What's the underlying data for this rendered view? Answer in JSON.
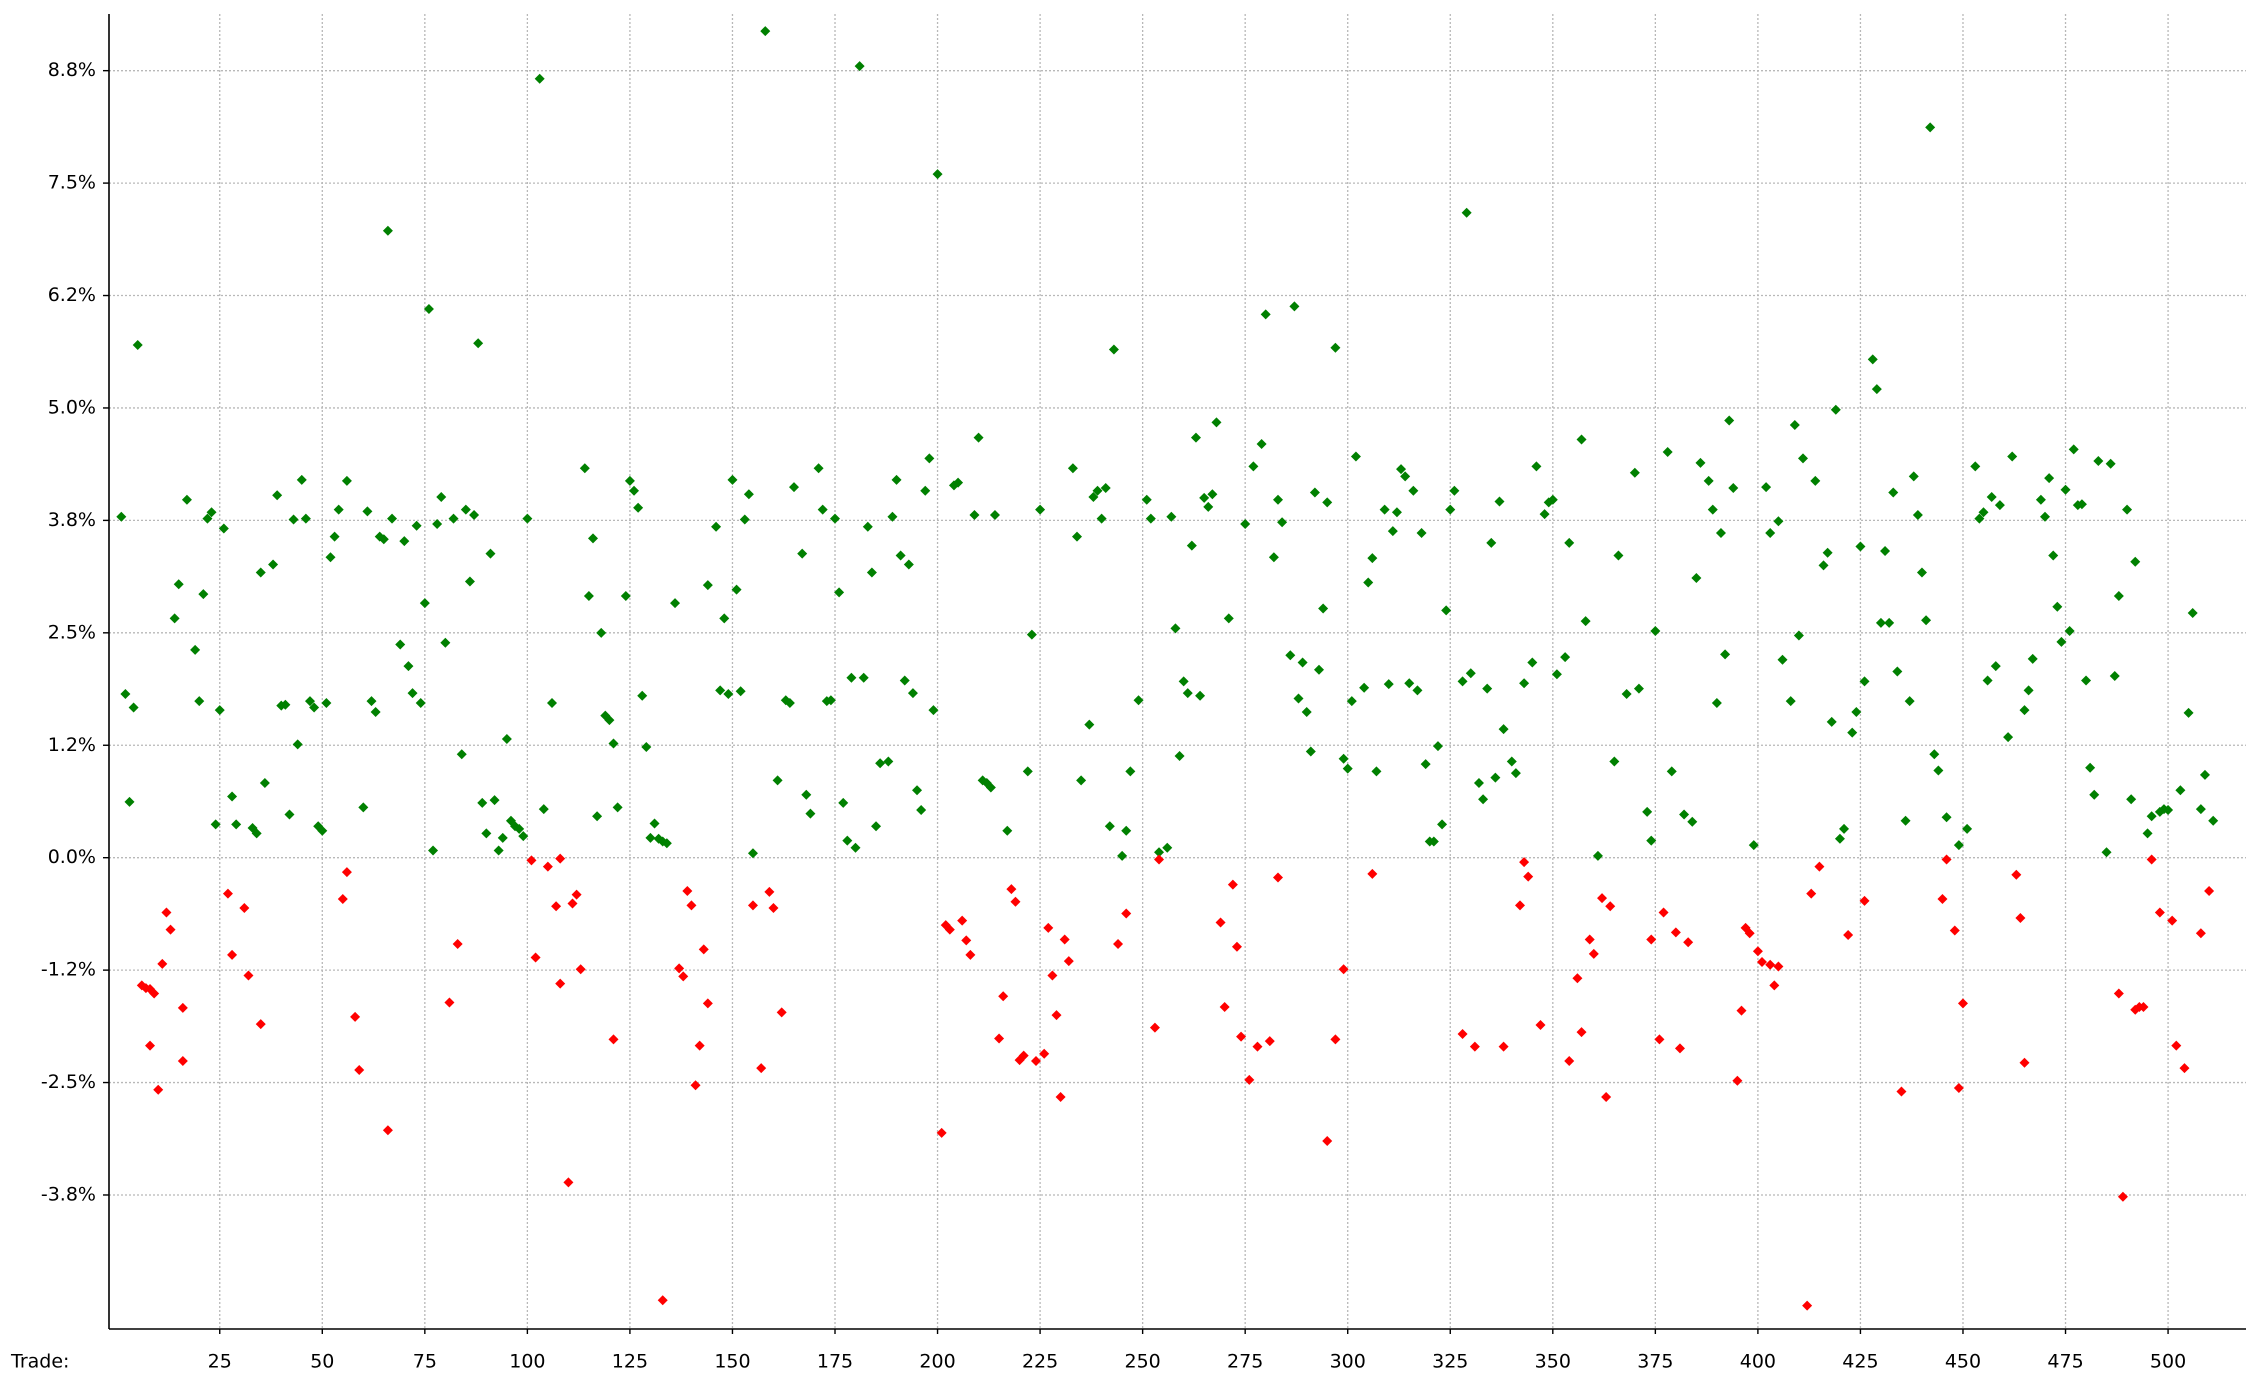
{
  "chart_data": {
    "type": "scatter",
    "x_label": "Trade:",
    "x_label_color": "#0000ff",
    "xlim": [
      -2,
      519
    ],
    "ylim": [
      -5.24,
      9.38
    ],
    "grid": true,
    "xticks": [
      25,
      50,
      75,
      100,
      125,
      150,
      175,
      200,
      225,
      250,
      275,
      300,
      325,
      350,
      375,
      400,
      425,
      450,
      475,
      500
    ],
    "yticks": [
      {
        "value": -3.75,
        "label": "-3.8%"
      },
      {
        "value": -2.5,
        "label": "-2.5%"
      },
      {
        "value": -1.25,
        "label": "-1.2%"
      },
      {
        "value": 0,
        "label": "0.0%"
      },
      {
        "value": 1.25,
        "label": "1.2%"
      },
      {
        "value": 2.5,
        "label": "2.5%"
      },
      {
        "value": 3.75,
        "label": "3.8%"
      },
      {
        "value": 5,
        "label": "5.0%"
      },
      {
        "value": 6.25,
        "label": "6.2%"
      },
      {
        "value": 7.5,
        "label": "7.5%"
      },
      {
        "value": 8.75,
        "label": "8.8%"
      }
    ],
    "series": [
      {
        "color": "#008000",
        "x": [
          1,
          2,
          3,
          4,
          5,
          14,
          15,
          17,
          19,
          20,
          21,
          22,
          23,
          24,
          25,
          26,
          28,
          29,
          33,
          34,
          35,
          36,
          38,
          39,
          40,
          41,
          42,
          43,
          44,
          45,
          46,
          47,
          48,
          49,
          50,
          51,
          52,
          53,
          54,
          56,
          60,
          61,
          62,
          63,
          64,
          65,
          66,
          67,
          69,
          70,
          71,
          72,
          73,
          74,
          75,
          76,
          77,
          78,
          79,
          80,
          82,
          84,
          85,
          86,
          87,
          88,
          89,
          90,
          91,
          92,
          93,
          94,
          95,
          96,
          97,
          98,
          99,
          100,
          103,
          104,
          106,
          114,
          115,
          116,
          117,
          118,
          119,
          120,
          121,
          122,
          124,
          125,
          126,
          127,
          128,
          129,
          130,
          131,
          132,
          133,
          134,
          136,
          144,
          146,
          147,
          148,
          149,
          150,
          151,
          152,
          153,
          154,
          155,
          158,
          161,
          163,
          164,
          165,
          167,
          168,
          169,
          171,
          172,
          173,
          174,
          175,
          176,
          177,
          178,
          179,
          180,
          181,
          182,
          183,
          184,
          185,
          186,
          188,
          189,
          190,
          191,
          192,
          193,
          194,
          195,
          196,
          197,
          198,
          199,
          200,
          204,
          205,
          209,
          210,
          211,
          212,
          213,
          214,
          217,
          222,
          223,
          225,
          233,
          234,
          235,
          237,
          238,
          239,
          240,
          241,
          242,
          243,
          245,
          246,
          247,
          249,
          251,
          252,
          254,
          256,
          257,
          258,
          259,
          260,
          261,
          262,
          263,
          264,
          265,
          266,
          267,
          268,
          271,
          275,
          277,
          279,
          280,
          282,
          283,
          284,
          286,
          287,
          288,
          289,
          290,
          291,
          292,
          293,
          294,
          295,
          297,
          299,
          300,
          301,
          302,
          304,
          305,
          306,
          307,
          309,
          310,
          311,
          312,
          313,
          314,
          315,
          316,
          317,
          318,
          319,
          320,
          321,
          322,
          323,
          324,
          325,
          326,
          328,
          329,
          330,
          332,
          333,
          334,
          335,
          336,
          337,
          338,
          340,
          341,
          343,
          345,
          346,
          348,
          349,
          350,
          351,
          353,
          354,
          357,
          358,
          361,
          365,
          366,
          368,
          370,
          371,
          373,
          374,
          375,
          378,
          379,
          382,
          384,
          385,
          386,
          388,
          389,
          390,
          391,
          392,
          393,
          394,
          399,
          402,
          403,
          405,
          406,
          408,
          409,
          410,
          411,
          414,
          416,
          417,
          418,
          419,
          420,
          421,
          423,
          424,
          425,
          426,
          428,
          429,
          430,
          431,
          432,
          433,
          434,
          436,
          437,
          438,
          439,
          440,
          441,
          442,
          443,
          444,
          446,
          449,
          451,
          453,
          454,
          455,
          456,
          457,
          458,
          459,
          461,
          462,
          465,
          466,
          467,
          469,
          470,
          471,
          472,
          473,
          474,
          475,
          476,
          477,
          478,
          479,
          480,
          481,
          482,
          483,
          485,
          486,
          487,
          488,
          490,
          491,
          492,
          495,
          496,
          498,
          499,
          500,
          503,
          505,
          506,
          508,
          509,
          511
        ],
        "values": [
          3.79,
          1.82,
          0.62,
          1.67,
          5.7,
          2.66,
          3.04,
          3.98,
          2.31,
          1.74,
          2.93,
          3.77,
          3.84,
          0.37,
          1.64,
          3.66,
          0.68,
          0.37,
          0.33,
          0.27,
          3.17,
          0.83,
          3.26,
          4.03,
          1.69,
          1.7,
          0.48,
          3.76,
          1.26,
          4.2,
          3.77,
          1.74,
          1.67,
          0.35,
          0.3,
          1.72,
          3.34,
          3.57,
          3.87,
          4.19,
          0.56,
          3.85,
          1.74,
          1.62,
          3.57,
          3.54,
          6.97,
          3.77,
          2.37,
          3.52,
          2.13,
          1.83,
          3.69,
          1.72,
          2.83,
          6.1,
          0.08,
          3.71,
          4.01,
          2.39,
          3.77,
          1.15,
          3.87,
          3.07,
          3.81,
          5.72,
          0.61,
          0.27,
          3.38,
          0.64,
          0.08,
          0.22,
          1.32,
          0.41,
          0.35,
          0.32,
          0.24,
          3.77,
          8.66,
          0.54,
          1.72,
          4.33,
          2.91,
          3.55,
          0.46,
          2.5,
          1.58,
          1.53,
          1.27,
          0.56,
          2.91,
          4.19,
          4.08,
          3.89,
          1.8,
          1.23,
          0.22,
          0.38,
          0.21,
          0.18,
          0.16,
          2.83,
          3.03,
          3.68,
          1.86,
          2.66,
          1.82,
          4.2,
          2.98,
          1.85,
          3.76,
          4.04,
          0.05,
          9.19,
          0.86,
          1.75,
          1.72,
          4.12,
          3.38,
          0.7,
          0.49,
          4.33,
          3.87,
          1.74,
          1.75,
          3.77,
          2.95,
          0.61,
          0.19,
          2.0,
          0.11,
          8.8,
          2.0,
          3.68,
          3.17,
          0.35,
          1.05,
          1.07,
          3.79,
          4.2,
          3.36,
          1.97,
          3.26,
          1.83,
          0.75,
          0.53,
          4.08,
          4.44,
          1.64,
          7.6,
          4.14,
          4.17,
          3.81,
          4.67,
          0.86,
          0.83,
          0.78,
          3.81,
          0.3,
          0.96,
          2.48,
          3.87,
          4.33,
          3.57,
          0.86,
          1.48,
          4.01,
          4.08,
          3.77,
          4.11,
          0.35,
          5.65,
          0.02,
          0.3,
          0.96,
          1.75,
          3.98,
          3.77,
          0.06,
          0.11,
          3.79,
          2.55,
          1.13,
          1.96,
          1.83,
          3.47,
          4.67,
          1.8,
          4.0,
          3.9,
          4.04,
          4.84,
          2.66,
          3.71,
          4.35,
          4.6,
          6.04,
          3.34,
          3.98,
          3.73,
          2.25,
          6.13,
          1.77,
          2.17,
          1.62,
          1.18,
          4.06,
          2.09,
          2.77,
          3.95,
          5.67,
          1.1,
          0.99,
          1.74,
          4.46,
          1.89,
          3.06,
          3.33,
          0.96,
          3.87,
          1.93,
          3.63,
          3.84,
          4.32,
          4.24,
          1.94,
          4.08,
          1.86,
          3.61,
          1.04,
          0.18,
          0.18,
          1.24,
          0.37,
          2.75,
          3.87,
          4.08,
          1.96,
          7.17,
          2.05,
          0.83,
          0.65,
          1.88,
          3.5,
          0.89,
          3.96,
          1.43,
          1.07,
          0.94,
          1.94,
          2.17,
          4.35,
          3.82,
          3.95,
          3.98,
          2.04,
          2.23,
          3.5,
          4.65,
          2.63,
          0.02,
          1.07,
          3.36,
          1.82,
          4.28,
          1.88,
          0.51,
          0.19,
          2.52,
          4.51,
          0.96,
          0.48,
          0.4,
          3.11,
          4.39,
          4.19,
          3.87,
          1.72,
          3.61,
          2.26,
          4.86,
          4.11,
          0.14,
          4.12,
          3.61,
          3.74,
          2.2,
          1.74,
          4.81,
          2.47,
          4.44,
          4.19,
          3.25,
          3.39,
          1.51,
          4.98,
          0.21,
          0.32,
          1.39,
          1.62,
          3.46,
          1.96,
          5.54,
          5.21,
          2.61,
          3.41,
          2.61,
          4.06,
          2.07,
          0.41,
          1.74,
          4.24,
          3.81,
          3.17,
          2.64,
          8.12,
          1.15,
          0.97,
          0.45,
          0.14,
          0.32,
          4.35,
          3.77,
          3.84,
          1.97,
          4.01,
          2.13,
          3.92,
          1.34,
          4.46,
          1.64,
          1.86,
          2.21,
          3.98,
          3.79,
          4.22,
          3.36,
          2.79,
          2.4,
          4.09,
          2.52,
          4.54,
          3.92,
          3.93,
          1.97,
          1.0,
          0.7,
          4.41,
          0.06,
          4.38,
          2.02,
          2.91,
          3.87,
          0.65,
          3.29,
          0.27,
          0.46,
          0.51,
          0.54,
          0.53,
          0.75,
          1.61,
          2.72,
          0.54,
          0.92,
          0.41
        ]
      },
      {
        "color": "#ff0000",
        "x": [
          6,
          7,
          8,
          8,
          9,
          10,
          11,
          12,
          13,
          16,
          16,
          27,
          28,
          31,
          32,
          35,
          55,
          56,
          58,
          59,
          66,
          81,
          83,
          101,
          102,
          105,
          107,
          108,
          108,
          110,
          111,
          112,
          113,
          121,
          133,
          137,
          138,
          139,
          140,
          141,
          142,
          143,
          144,
          155,
          157,
          159,
          160,
          162,
          201,
          202,
          203,
          206,
          207,
          208,
          215,
          216,
          218,
          219,
          220,
          221,
          224,
          226,
          227,
          228,
          229,
          230,
          231,
          232,
          244,
          246,
          253,
          254,
          269,
          270,
          272,
          273,
          274,
          276,
          278,
          281,
          283,
          295,
          297,
          299,
          306,
          328,
          331,
          338,
          342,
          343,
          344,
          347,
          354,
          356,
          357,
          359,
          360,
          362,
          363,
          364,
          374,
          376,
          377,
          380,
          381,
          383,
          395,
          396,
          397,
          398,
          400,
          401,
          403,
          404,
          405,
          412,
          413,
          415,
          422,
          426,
          435,
          445,
          446,
          448,
          449,
          450,
          463,
          464,
          465,
          489,
          488,
          492,
          493,
          494,
          496,
          498,
          501,
          502,
          504,
          508,
          510
        ],
        "values": [
          -1.42,
          -1.45,
          -2.09,
          -1.46,
          -1.51,
          -2.58,
          -1.18,
          -0.61,
          -0.8,
          -2.26,
          -1.67,
          -0.4,
          -1.08,
          -0.56,
          -1.31,
          -1.85,
          -0.46,
          -0.16,
          -1.77,
          -2.36,
          -3.03,
          -1.61,
          -0.96,
          -0.03,
          -1.11,
          -0.1,
          -0.54,
          -0.01,
          -1.4,
          -3.61,
          -0.51,
          -0.41,
          -1.24,
          -2.02,
          -4.92,
          -1.23,
          -1.32,
          -0.37,
          -0.53,
          -2.53,
          -2.09,
          -1.02,
          -1.62,
          -0.53,
          -2.34,
          -0.38,
          -0.56,
          -1.72,
          -3.06,
          -0.75,
          -0.8,
          -0.7,
          -0.92,
          -1.08,
          -2.01,
          -1.54,
          -0.35,
          -0.49,
          -2.25,
          -2.2,
          -2.26,
          -2.18,
          -0.78,
          -1.31,
          -1.75,
          -2.66,
          -0.91,
          -1.15,
          -0.96,
          -0.62,
          -1.89,
          -0.02,
          -0.72,
          -1.66,
          -0.3,
          -0.99,
          -1.99,
          -2.47,
          -2.1,
          -2.04,
          -0.22,
          -3.15,
          -2.02,
          -1.24,
          -0.18,
          -1.96,
          -2.1,
          -2.1,
          -0.53,
          -0.05,
          -0.21,
          -1.86,
          -2.26,
          -1.34,
          -1.94,
          -0.91,
          -1.07,
          -0.45,
          -2.66,
          -0.54,
          -0.91,
          -2.02,
          -0.61,
          -0.83,
          -2.12,
          -0.94,
          -2.48,
          -1.7,
          -0.78,
          -0.84,
          -1.04,
          -1.16,
          -1.19,
          -1.42,
          -1.21,
          -4.98,
          -0.4,
          -0.1,
          -0.86,
          -0.48,
          -2.6,
          -0.46,
          -0.02,
          -0.81,
          -2.56,
          -1.62,
          -0.19,
          -0.67,
          -2.28,
          -3.77,
          -1.51,
          -1.69,
          -1.66,
          -1.66,
          -0.02,
          -0.61,
          -0.7,
          -2.09,
          -2.34,
          -0.84,
          -0.37
        ]
      }
    ]
  }
}
